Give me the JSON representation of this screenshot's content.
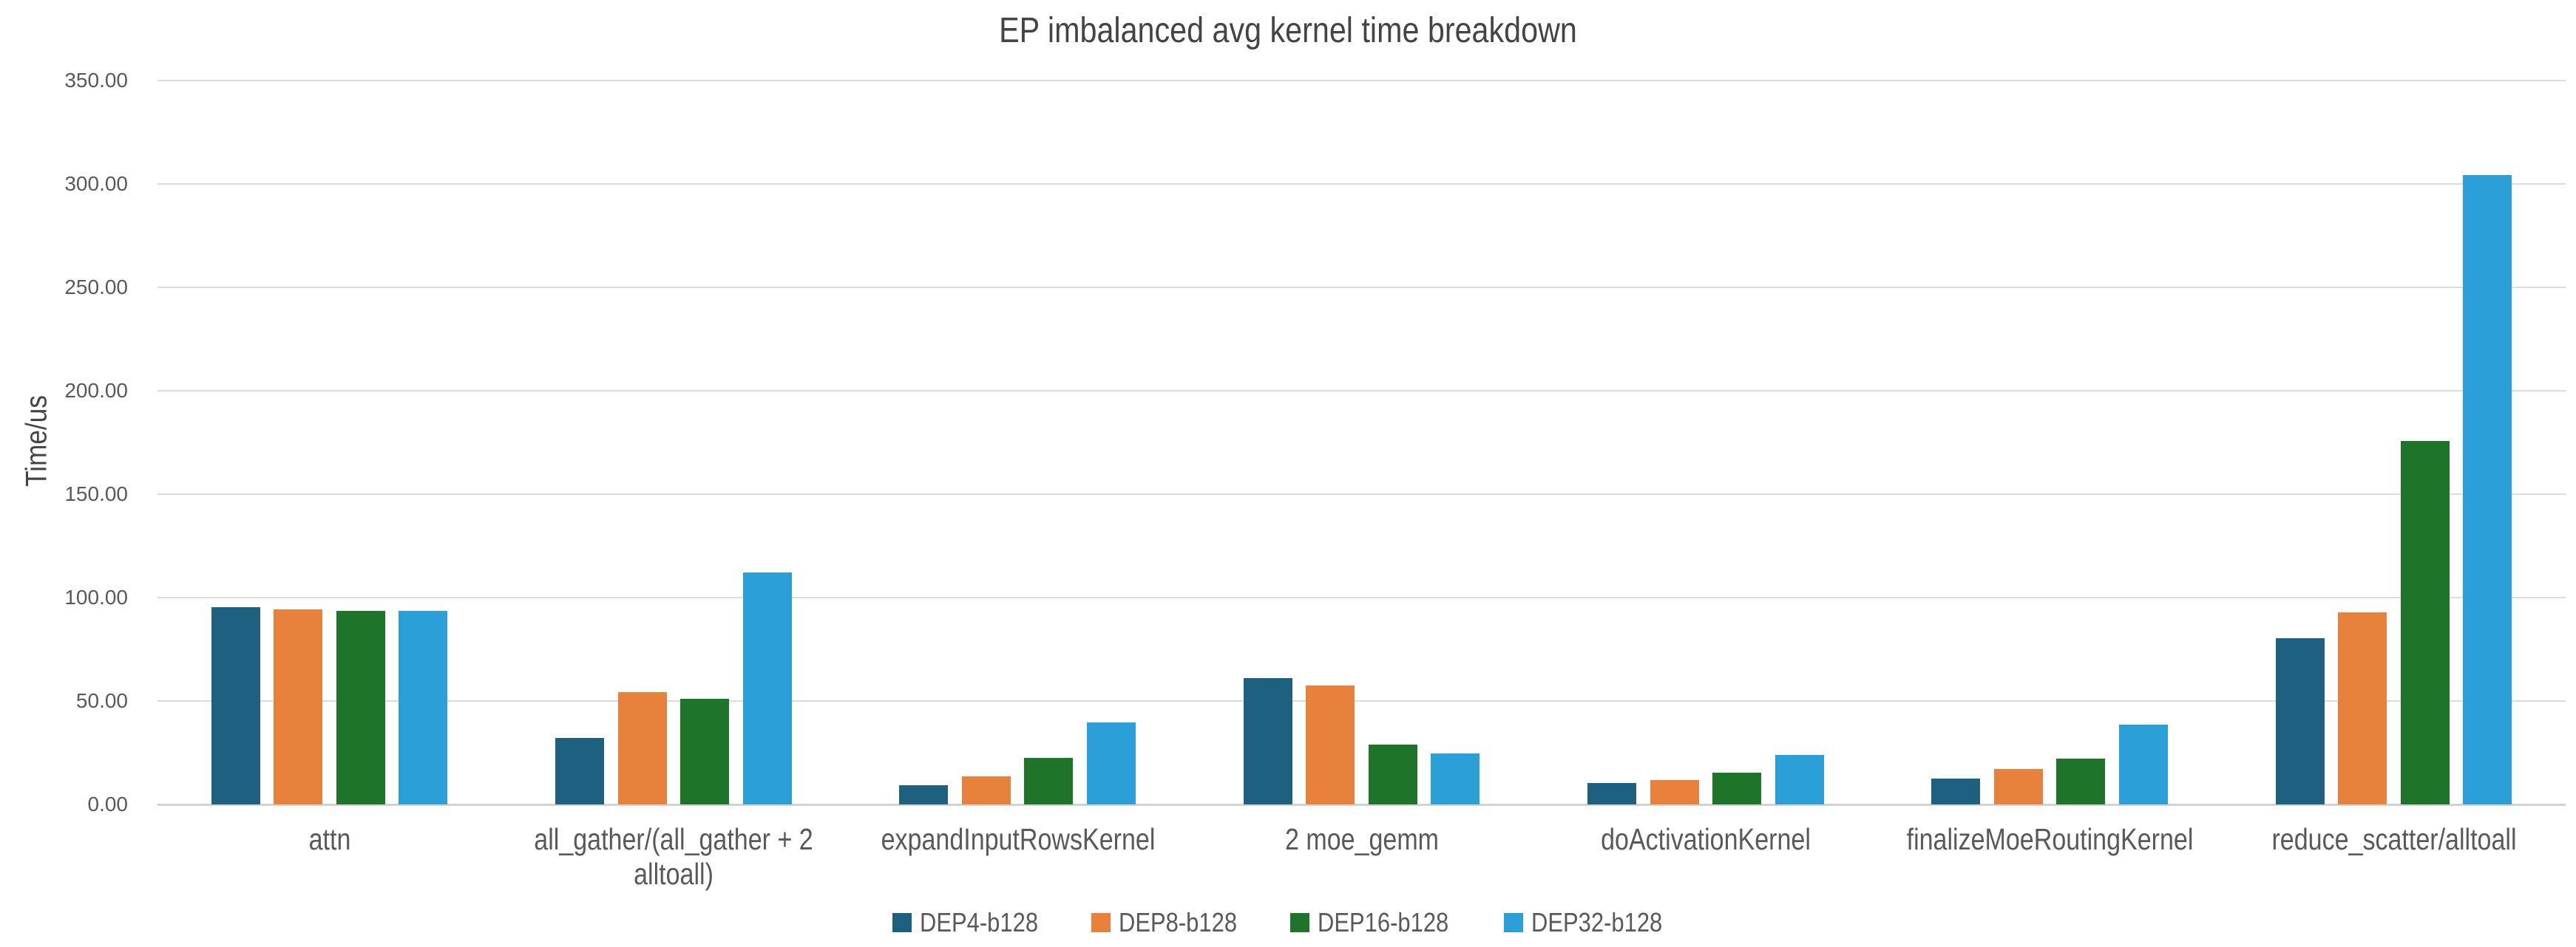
{
  "chart_data": {
    "type": "bar",
    "title": "EP imbalanced avg kernel time breakdown",
    "ylabel": "Time/us",
    "ylim": [
      0,
      350
    ],
    "ytick_step": 50,
    "ytick_labels": [
      "0.00",
      "50.00",
      "100.00",
      "150.00",
      "200.00",
      "250.00",
      "300.00",
      "350.00"
    ],
    "grid": "horizontal",
    "legend_position": "bottom",
    "categories": [
      "attn",
      "all_gather/(all_gather + 2 alltoall)",
      "expandInputRowsKernel",
      "2 moe_gemm",
      "doActivationKernel",
      "finalizeMoeRoutingKernel",
      "reduce_scatter/alltoall"
    ],
    "series": [
      {
        "name": "DEP4-b128",
        "color": "#1D6080",
        "values": [
          95.5,
          32.3,
          9.4,
          61.2,
          10.4,
          12.6,
          80.2
        ]
      },
      {
        "name": "DEP8-b128",
        "color": "#E8813C",
        "values": [
          94.3,
          54.3,
          13.7,
          57.4,
          11.8,
          17.2,
          93.0
        ]
      },
      {
        "name": "DEP16-b128",
        "color": "#1E7529",
        "values": [
          93.6,
          50.9,
          22.4,
          28.8,
          15.4,
          22.1,
          175.8
        ]
      },
      {
        "name": "DEP32-b128",
        "color": "#2A9FD8",
        "values": [
          93.5,
          112.0,
          39.6,
          24.7,
          24.1,
          38.5,
          304.3
        ]
      }
    ],
    "colors": {
      "gridline": "#dcdcdc",
      "axis_line": "#d2d2d2",
      "tick_text": "#595959",
      "title_text": "#444444"
    }
  }
}
